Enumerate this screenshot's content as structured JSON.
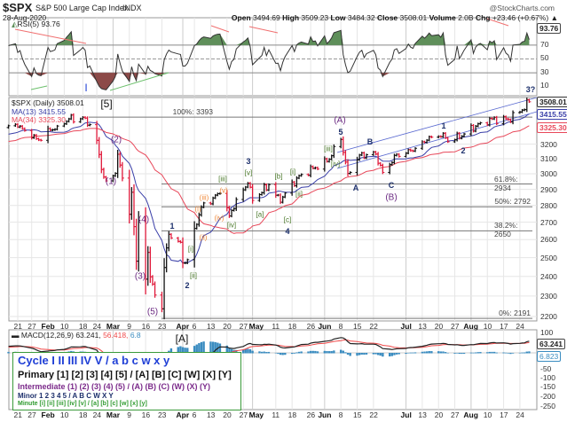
{
  "header": {
    "symbol": "$SPX",
    "name": "S&P 500 Large Cap Index",
    "exchange": "INDX",
    "date": "28-Aug-2020",
    "watermark": "@StockCharts.com",
    "open_label": "Open",
    "open": "3494.69",
    "high_label": "High",
    "high": "3509.23",
    "low_label": "Low",
    "low": "3484.32",
    "close_label": "Close",
    "close": "3508.01",
    "volume_label": "Volume",
    "volume": "2.0B",
    "chg_label": "Chg",
    "chg": "+23.46 (+0.67%)",
    "chg_arrow": "▲"
  },
  "colors": {
    "up": "#111111",
    "down": "#e0193a",
    "ma13": "#3a3fa8",
    "ma34": "#e8485a",
    "rsi_over": "#5f8f5a",
    "rsi_under": "#8c4a48",
    "macd": "#222222",
    "signal": "#f04a4a",
    "hist": "#3a8cc0",
    "legend_border": "#3a9a3a"
  },
  "rsi": {
    "label": "RSI(5) 93.76",
    "tag": "93.76",
    "levels": [
      "70",
      "50",
      "30",
      "10"
    ]
  },
  "price": {
    "legend": "$SPX (Daily) 3508.01",
    "ma13_label": "MA(13) 3415.55",
    "ma34_label": "MA(34) 3325.30",
    "close_tag": "3508.01",
    "ma13_tag": "3415.55",
    "ma34_tag": "3325.30",
    "y_ticks": [
      "3200",
      "3100",
      "3000",
      "2900",
      "2800",
      "2700",
      "2600",
      "2500",
      "2400",
      "2300",
      "2200"
    ],
    "scale": "log"
  },
  "fib": [
    {
      "label": "100%: 3393",
      "price": 3393
    },
    {
      "label": "61.8%: 2934",
      "price": 2934
    },
    {
      "label": "50%: 2792",
      "price": 2792
    },
    {
      "label": "38.2%: 2650",
      "price": 2650
    },
    {
      "label": "0%: 2191",
      "price": 2191
    }
  ],
  "x_ticks": [
    {
      "label": "21",
      "date": "2020-01-21"
    },
    {
      "label": "27",
      "date": "2020-01-27"
    },
    {
      "label": "Feb",
      "date": "2020-02-03",
      "major": true
    },
    {
      "label": "10",
      "date": "2020-02-10"
    },
    {
      "label": "18",
      "date": "2020-02-18"
    },
    {
      "label": "24",
      "date": "2020-02-24"
    },
    {
      "label": "Mar",
      "date": "2020-03-02",
      "major": true
    },
    {
      "label": "9",
      "date": "2020-03-09"
    },
    {
      "label": "16",
      "date": "2020-03-16"
    },
    {
      "label": "23",
      "date": "2020-03-23"
    },
    {
      "label": "Apr",
      "date": "2020-04-01",
      "major": true
    },
    {
      "label": "6",
      "date": "2020-04-06"
    },
    {
      "label": "13",
      "date": "2020-04-13"
    },
    {
      "label": "20",
      "date": "2020-04-20"
    },
    {
      "label": "27",
      "date": "2020-04-27"
    },
    {
      "label": "May",
      "date": "2020-05-01",
      "major": true
    },
    {
      "label": "11",
      "date": "2020-05-11"
    },
    {
      "label": "18",
      "date": "2020-05-18"
    },
    {
      "label": "26",
      "date": "2020-05-26"
    },
    {
      "label": "Jun",
      "date": "2020-06-01",
      "major": true
    },
    {
      "label": "8",
      "date": "2020-06-08"
    },
    {
      "label": "15",
      "date": "2020-06-15"
    },
    {
      "label": "22",
      "date": "2020-06-22"
    },
    {
      "label": "Jul",
      "date": "2020-07-06",
      "major": true
    },
    {
      "label": "13",
      "date": "2020-07-13"
    },
    {
      "label": "20",
      "date": "2020-07-20"
    },
    {
      "label": "27",
      "date": "2020-07-27"
    },
    {
      "label": "Aug",
      "date": "2020-08-03",
      "major": true
    },
    {
      "label": "10",
      "date": "2020-08-10"
    },
    {
      "label": "17",
      "date": "2020-08-17"
    },
    {
      "label": "24",
      "date": "2020-08-24"
    }
  ],
  "annotations": {
    "cycle_I": "I",
    "primary_5": "[5]",
    "int_1": "(1)",
    "int_2": "(2)",
    "int_3": "(3)",
    "int_4": "(4)",
    "int_5": "(5)",
    "minor_1": "1",
    "minor_2": "2",
    "minor_3": "3",
    "minor_4": "4",
    "minor_5": "5",
    "min_i": "[i]",
    "min_ii": "[ii]",
    "min_iii": "[iii]",
    "min_iv": "[iv]",
    "min_v": "[v]",
    "min_a": "[a]",
    "min_b": "[b]",
    "min_c": "[c]",
    "min_i2": "[i]",
    "min_ii2": "[ii]",
    "min_iii2": "[iii]",
    "min_iv2": "[iv]",
    "sub_i": "(i)",
    "sub_ii": "(ii)",
    "sub_iii": "(iii)",
    "sub_iv": "(iv)",
    "sub_v": "(v)",
    "int_A": "(A)",
    "int_B": "(B)",
    "minor_A": "A",
    "minor_B": "B",
    "minor_C": "C",
    "minor_1b": "1",
    "minor_2b": "2",
    "minor_3q": "3?",
    "primary_A": "[A]"
  },
  "macd": {
    "label": "MACD(12,26,9)",
    "macd_value": "63.241,",
    "signal_value": "56.418,",
    "hist_value": "6.8",
    "macd_tag": "63.241",
    "hist_tag": "6.823",
    "y_ticks": [
      "100",
      "50",
      "-50",
      "-100",
      "-150",
      "-200",
      "-250"
    ]
  },
  "legend": {
    "cycle": "Cycle I II III IV V / a b c w x y",
    "primary": "Primary [1] [2] [3] [4] [5] / [A] [B] [C] [W] [X] [Y]",
    "intermediate": "Intermediate (1) (2) (3) (4) (5) / (A) (B) (C) (W) (X) (Y)",
    "minor": "Minor 1 2 3 4 5 / A B C W X Y",
    "minute": "Minute [i] [ii] [iii] [iv] [v] / [a] [b] [c] [w] [x] [y]"
  },
  "chart_data": [
    {
      "type": "ohlc",
      "title": "$SPX (Daily)",
      "scale": "log",
      "ylim": [
        2150,
        3560
      ],
      "close_points": [
        [
          "2019-12-02",
          3113
        ],
        [
          "2019-12-13",
          3168
        ],
        [
          "2019-12-20",
          3221
        ],
        [
          "2019-12-31",
          3231
        ],
        [
          "2020-01-08",
          3253
        ],
        [
          "2020-01-16",
          3317
        ],
        [
          "2020-01-17",
          3330
        ],
        [
          "2020-01-21",
          3321
        ],
        [
          "2020-01-24",
          3295
        ],
        [
          "2020-01-27",
          3244
        ],
        [
          "2020-01-31",
          3226
        ],
        [
          "2020-02-04",
          3298
        ],
        [
          "2020-02-07",
          3328
        ],
        [
          "2020-02-12",
          3380
        ],
        [
          "2020-02-19",
          3386
        ],
        [
          "2020-02-21",
          3338
        ],
        [
          "2020-02-24",
          3226
        ],
        [
          "2020-02-25",
          3128
        ],
        [
          "2020-02-27",
          2979
        ],
        [
          "2020-02-28",
          2954
        ],
        [
          "2020-03-03",
          3003
        ],
        [
          "2020-03-04",
          3130
        ],
        [
          "2020-03-06",
          2972
        ],
        [
          "2020-03-09",
          2747
        ],
        [
          "2020-03-10",
          2882
        ],
        [
          "2020-03-12",
          2481
        ],
        [
          "2020-03-13",
          2711
        ],
        [
          "2020-03-16",
          2386
        ],
        [
          "2020-03-17",
          2529
        ],
        [
          "2020-03-18",
          2398
        ],
        [
          "2020-03-20",
          2305
        ],
        [
          "2020-03-23",
          2237
        ],
        [
          "2020-03-24",
          2447
        ],
        [
          "2020-03-26",
          2630
        ],
        [
          "2020-03-31",
          2585
        ],
        [
          "2020-04-01",
          2471
        ],
        [
          "2020-04-03",
          2489
        ],
        [
          "2020-04-06",
          2664
        ],
        [
          "2020-04-09",
          2790
        ],
        [
          "2020-04-14",
          2846
        ],
        [
          "2020-04-17",
          2875
        ],
        [
          "2020-04-21",
          2737
        ],
        [
          "2020-04-24",
          2837
        ],
        [
          "2020-04-29",
          2940
        ],
        [
          "2020-05-01",
          2831
        ],
        [
          "2020-05-08",
          2930
        ],
        [
          "2020-05-13",
          2820
        ],
        [
          "2020-05-14",
          2852
        ],
        [
          "2020-05-20",
          2972
        ],
        [
          "2020-05-27",
          3036
        ],
        [
          "2020-06-02",
          3081
        ],
        [
          "2020-06-08",
          3232
        ],
        [
          "2020-06-11",
          3002
        ],
        [
          "2020-06-16",
          3125
        ],
        [
          "2020-06-23",
          3131
        ],
        [
          "2020-06-26",
          3009
        ],
        [
          "2020-07-02",
          3130
        ],
        [
          "2020-07-09",
          3152
        ],
        [
          "2020-07-15",
          3227
        ],
        [
          "2020-07-22",
          3276
        ],
        [
          "2020-07-24",
          3216
        ],
        [
          "2020-07-31",
          3271
        ],
        [
          "2020-08-07",
          3351
        ],
        [
          "2020-08-12",
          3380
        ],
        [
          "2020-08-19",
          3375
        ],
        [
          "2020-08-24",
          3431
        ],
        [
          "2020-08-28",
          3508
        ]
      ],
      "series": [
        {
          "name": "MA(13)",
          "last": 3415.55
        },
        {
          "name": "MA(34)",
          "last": 3325.3
        }
      ]
    },
    {
      "type": "line",
      "title": "RSI(5)",
      "last": 93.76,
      "ylim": [
        0,
        100
      ]
    },
    {
      "type": "line",
      "title": "MACD(12,26,9)",
      "series": [
        {
          "name": "MACD",
          "last": 63.241
        },
        {
          "name": "Signal",
          "last": 56.418
        },
        {
          "name": "Histogram",
          "last": 6.823
        }
      ]
    }
  ]
}
